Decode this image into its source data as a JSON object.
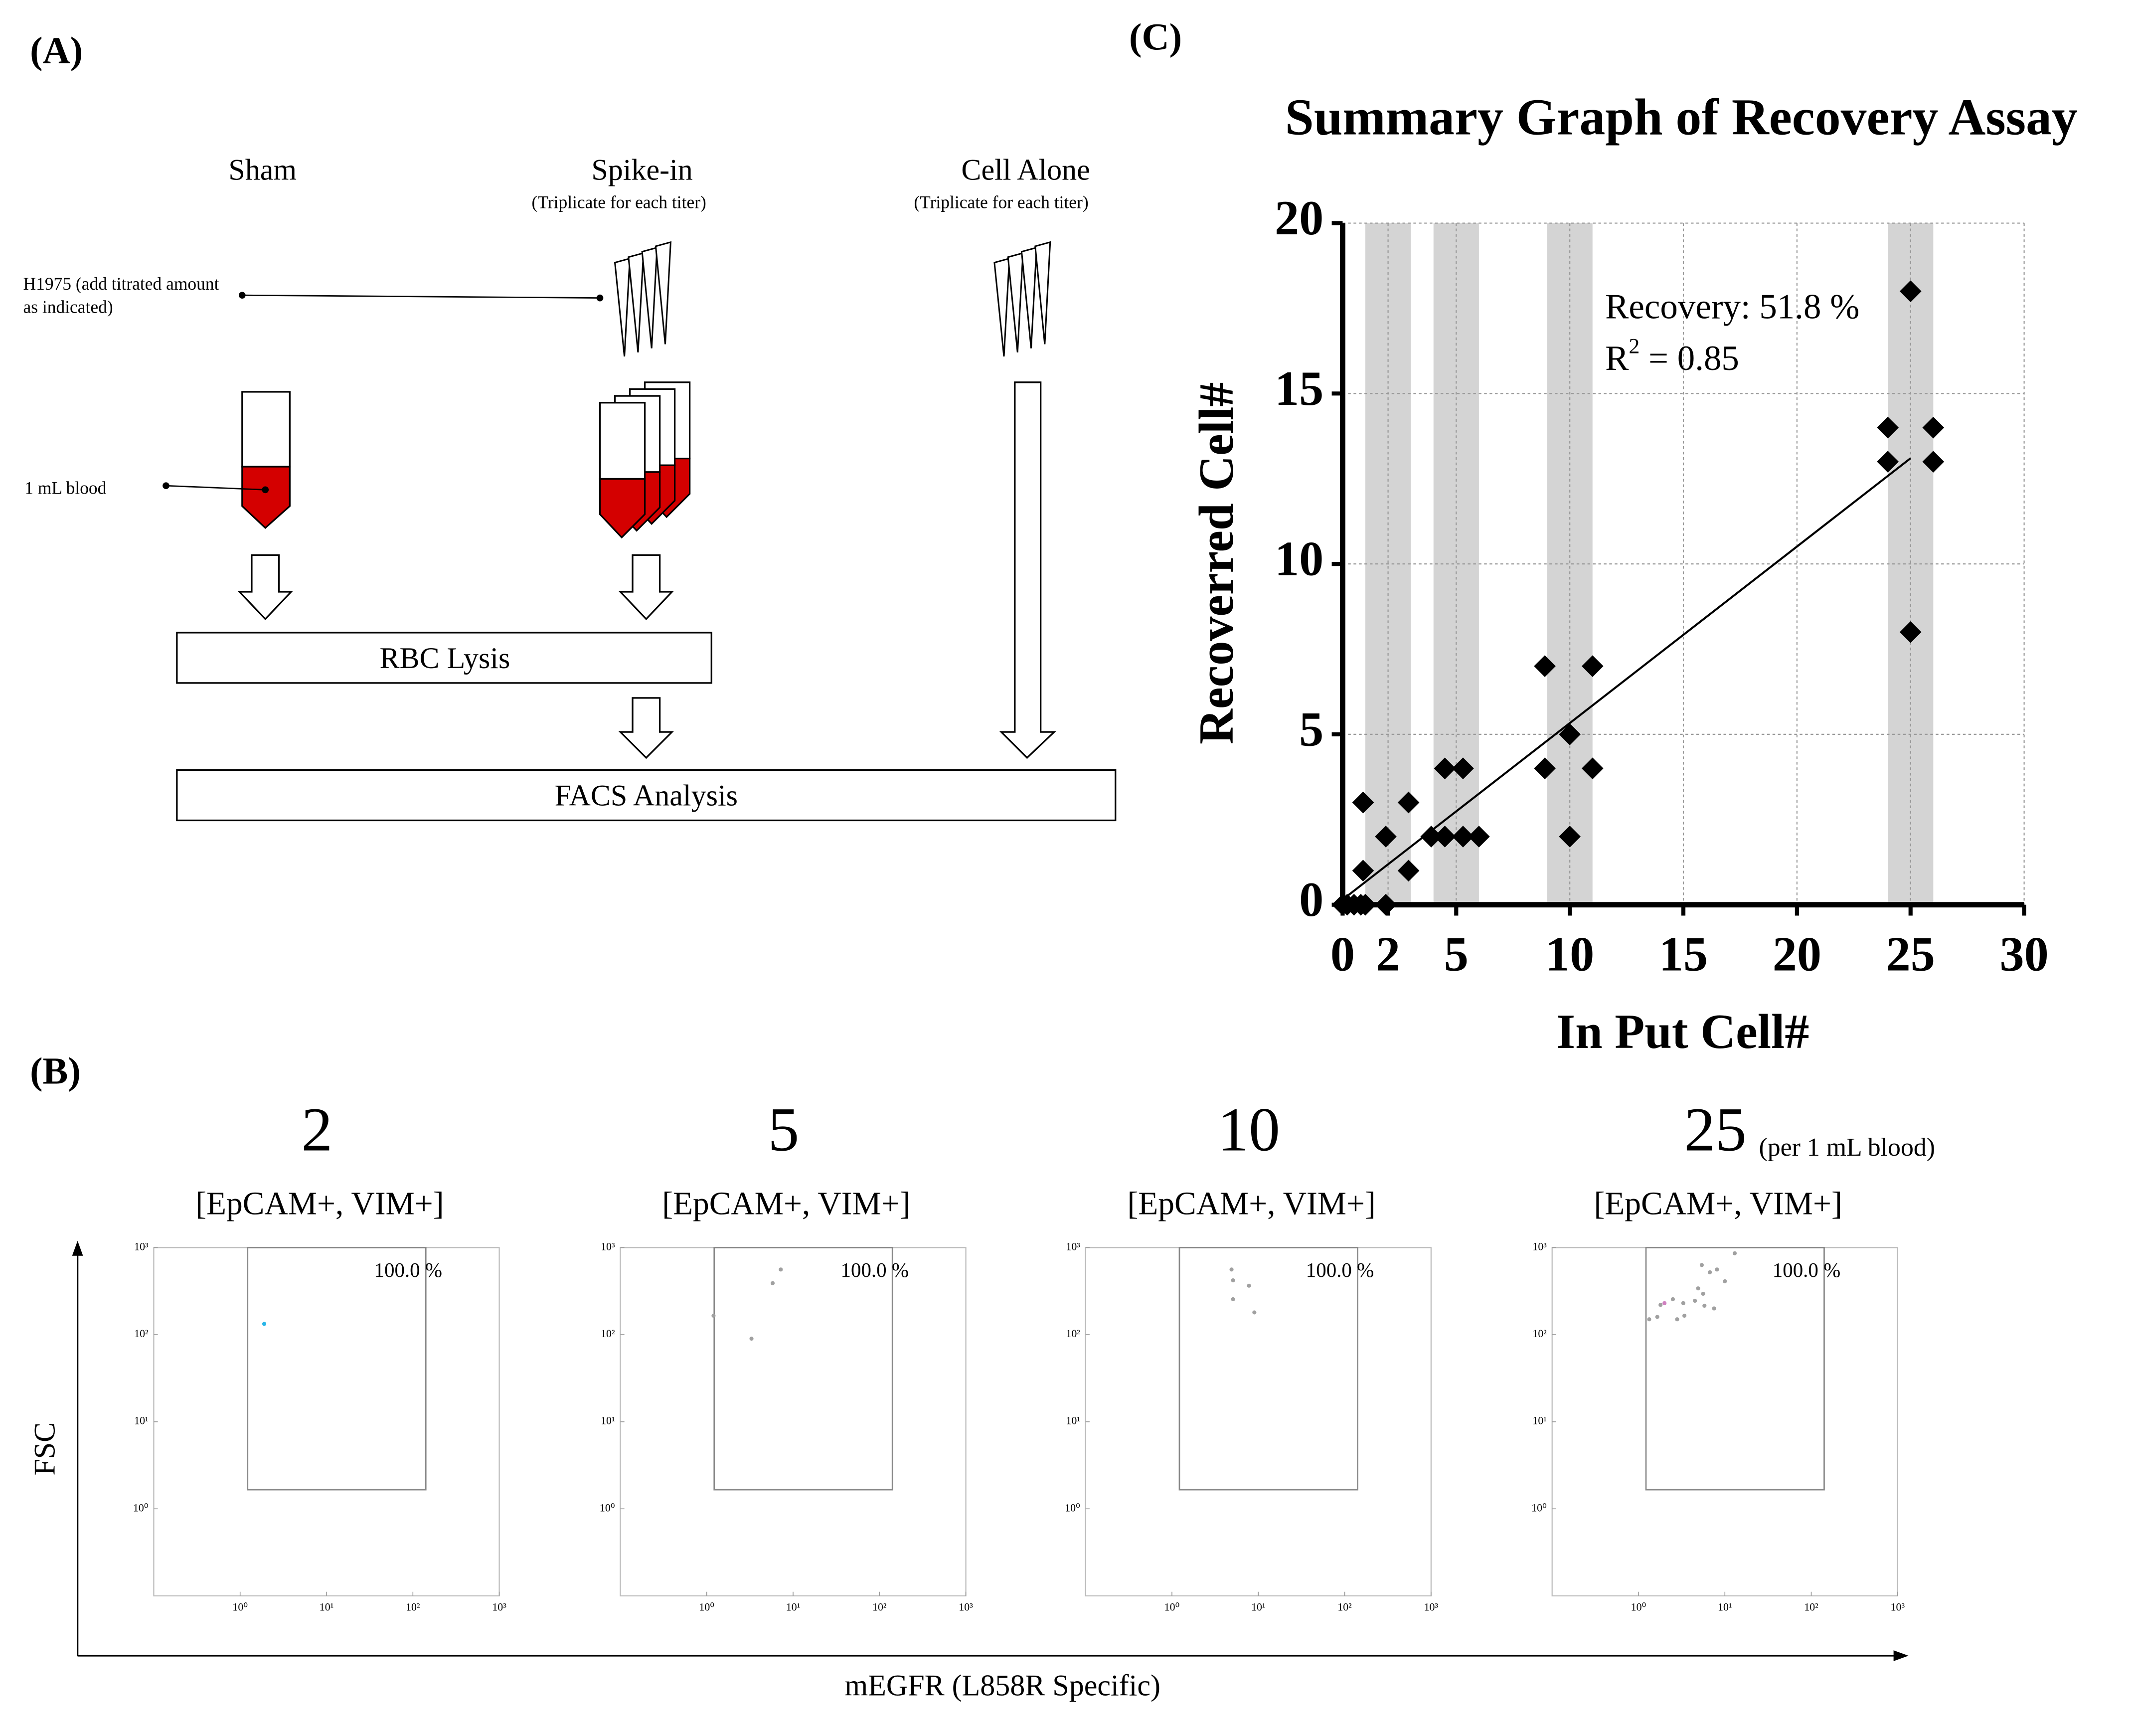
{
  "figure_labels": [
    "(A)",
    "(B)",
    "(C)"
  ],
  "diagram": {
    "columns": [
      {
        "title": "Sham"
      },
      {
        "title": "Spike-in",
        "note": "(Triplicate for each titer)"
      },
      {
        "title": "Cell Alone",
        "note": "(Triplicate for each titer)"
      }
    ],
    "cell_label": [
      "H1975 (add titrated amount",
      "as indicated)"
    ],
    "blood_label": "1 mL blood",
    "steps": [
      "RBC Lysis",
      "FACS Analysis"
    ]
  },
  "facs_axes": {
    "y_label": "FSC",
    "x_label": "mEGFR (L858R Specific)"
  },
  "chart_data": [
    {
      "type": "scatter",
      "title": "Summary Graph of Recovery Assay",
      "x_label": "In Put Cell#",
      "y_label": "Recoverred Cell#",
      "x": [
        0,
        0.2,
        0.5,
        0.8,
        1.0,
        0.9,
        0.9,
        1.9,
        1.9,
        2.9,
        2.9,
        3.9,
        4.5,
        5.3,
        4.5,
        5.3,
        6,
        8.9,
        8.9,
        10,
        10,
        11,
        11,
        24,
        24,
        25,
        25,
        26,
        26
      ],
      "y": [
        0,
        0,
        0,
        0,
        0,
        1,
        3,
        2,
        0,
        3,
        1,
        2,
        4,
        4,
        2,
        2,
        2,
        7,
        4,
        5,
        2,
        7,
        4,
        14,
        13,
        18,
        8,
        14,
        13
      ],
      "color": "#000000",
      "xlim": [
        0,
        30
      ],
      "ylim": [
        0,
        20
      ],
      "xticks": [
        0,
        2,
        5,
        10,
        15,
        20,
        25,
        30
      ],
      "yticks": [
        0,
        5,
        10,
        15,
        20
      ],
      "grid": true,
      "bands": [
        [
          1,
          3
        ],
        [
          4,
          6
        ],
        [
          9,
          11
        ],
        [
          24,
          26
        ]
      ],
      "band_color": "#d4d4d4",
      "fit": {
        "slope": 0.518,
        "intercept": 0.15,
        "x_range": [
          0.2,
          25
        ]
      },
      "annotation": "Recovery: 51.8 %",
      "r2_label": [
        "R",
        "2",
        " = 0.85"
      ]
    },
    {
      "type": "facs",
      "title": "2",
      "subtitle": "[EpCAM+, VIM+]",
      "annotation": "100.0 %",
      "log_scale": true,
      "xlim": [
        0.1,
        1000
      ],
      "ylim": [
        0.1,
        1000
      ],
      "xticks": [
        {
          "value": 1,
          "label": "10⁰"
        },
        {
          "value": 10,
          "label": "10¹"
        },
        {
          "value": 100,
          "label": "10²"
        },
        {
          "value": 1000,
          "label": "10³"
        }
      ],
      "yticks": [
        {
          "value": 1,
          "label": "10⁰"
        },
        {
          "value": 10,
          "label": "10¹"
        },
        {
          "value": 100,
          "label": "10²"
        },
        {
          "value": 1000,
          "label": "10³"
        }
      ],
      "x": [
        1.9
      ],
      "y": [
        133
      ],
      "colors": [
        "#29b6e8"
      ]
    },
    {
      "type": "facs",
      "title": "5",
      "subtitle": "[EpCAM+, VIM+]",
      "annotation": "100.0 %",
      "log_scale": true,
      "xlim": [
        0.1,
        1000
      ],
      "ylim": [
        0.1,
        1000
      ],
      "xticks": [
        {
          "value": 1,
          "label": "10⁰"
        },
        {
          "value": 10,
          "label": "10¹"
        },
        {
          "value": 100,
          "label": "10²"
        },
        {
          "value": 1000,
          "label": "10³"
        }
      ],
      "yticks": [
        {
          "value": 1,
          "label": "10⁰"
        },
        {
          "value": 10,
          "label": "10¹"
        },
        {
          "value": 100,
          "label": "10²"
        },
        {
          "value": 1000,
          "label": "10³"
        }
      ],
      "x": [
        7.2,
        5.8,
        1.2,
        3.3
      ],
      "y": [
        560,
        390,
        165,
        90
      ],
      "colors": [
        "#a0a0a0",
        "#a0a0a0",
        "#a0a0a0",
        "#a0a0a0"
      ]
    },
    {
      "type": "facs",
      "title": "10",
      "subtitle": "[EpCAM+, VIM+]",
      "annotation": "100.0 %",
      "log_scale": true,
      "xlim": [
        0.1,
        1000
      ],
      "ylim": [
        0.1,
        1000
      ],
      "xticks": [
        {
          "value": 1,
          "label": "10⁰"
        },
        {
          "value": 10,
          "label": "10¹"
        },
        {
          "value": 100,
          "label": "10²"
        },
        {
          "value": 1000,
          "label": "10³"
        }
      ],
      "yticks": [
        {
          "value": 1,
          "label": "10⁰"
        },
        {
          "value": 10,
          "label": "10¹"
        },
        {
          "value": 100,
          "label": "10²"
        },
        {
          "value": 1000,
          "label": "10³"
        }
      ],
      "x": [
        4.9,
        5.1,
        7.8,
        5.1,
        9
      ],
      "y": [
        560,
        420,
        365,
        255,
        180
      ],
      "colors": [
        "#a0a0a0",
        "#a0a0a0",
        "#a0a0a0",
        "#a0a0a0",
        "#a0a0a0"
      ]
    },
    {
      "type": "facs",
      "title": "25",
      "title_note": "(per 1 mL blood)",
      "subtitle": "[EpCAM+, VIM+]",
      "annotation": "100.0 %",
      "log_scale": true,
      "xlim": [
        0.1,
        1000
      ],
      "ylim": [
        0.1,
        1000
      ],
      "xticks": [
        {
          "value": 1,
          "label": "10⁰"
        },
        {
          "value": 10,
          "label": "10¹"
        },
        {
          "value": 100,
          "label": "10²"
        },
        {
          "value": 1000,
          "label": "10³"
        }
      ],
      "yticks": [
        {
          "value": 1,
          "label": "10⁰"
        },
        {
          "value": 10,
          "label": "10¹"
        },
        {
          "value": 100,
          "label": "10²"
        },
        {
          "value": 1000,
          "label": "10³"
        }
      ],
      "x": [
        13,
        5.4,
        8.1,
        6.7,
        10,
        4.9,
        5.6,
        4.5,
        2.5,
        3.3,
        3.4,
        1.8,
        2.0,
        5.8,
        1.65,
        1.33,
        7.5,
        2.8
      ],
      "y": [
        860,
        630,
        560,
        520,
        410,
        340,
        295,
        245,
        255,
        230,
        165,
        220,
        230,
        215,
        160,
        150,
        200,
        150
      ],
      "colors": [
        "#a0a0a0",
        "#a0a0a0",
        "#a0a0a0",
        "#a0a0a0",
        "#a0a0a0",
        "#a0a0a0",
        "#a0a0a0",
        "#a0a0a0",
        "#a0a0a0",
        "#a0a0a0",
        "#a0a0a0",
        "#a0a0a0",
        "#d080c0",
        "#a0a0a0",
        "#a0a0a0",
        "#a0a0a0",
        "#a0a0a0",
        "#a0a0a0"
      ]
    }
  ]
}
